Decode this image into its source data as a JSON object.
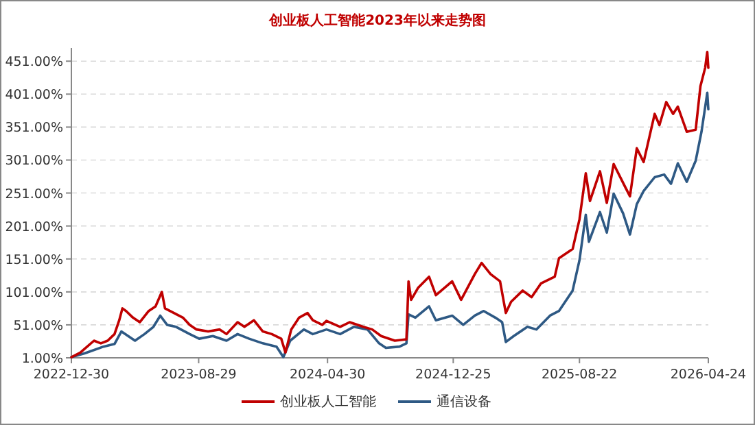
{
  "chart_data": {
    "type": "line",
    "title": "创业板人工智能2023年以来走势图",
    "xlim": [
      "2022-12-30",
      "2026-04-24"
    ],
    "xticks": [
      "2022-12-30",
      "2023-08-29",
      "2024-04-30",
      "2024-12-25",
      "2025-08-22",
      "2026-04-24"
    ],
    "ylim": [
      1,
      471
    ],
    "yticks": [
      {
        "value": 1,
        "label": "1.00%"
      },
      {
        "value": 51,
        "label": "51.00%"
      },
      {
        "value": 101,
        "label": "101.00%"
      },
      {
        "value": 151,
        "label": "151.00%"
      },
      {
        "value": 201,
        "label": "201.00%"
      },
      {
        "value": 251,
        "label": "251.00%"
      },
      {
        "value": 301,
        "label": "301.00%"
      },
      {
        "value": 351,
        "label": "351.00%"
      },
      {
        "value": 401,
        "label": "401.00%"
      },
      {
        "value": 451,
        "label": "451.00%"
      }
    ],
    "grid": "y",
    "legend": "bottom",
    "marker": "none",
    "line_style": "solid",
    "series": [
      {
        "name": "创业板人工智能",
        "color": "#c00000",
        "x": [
          "2022-12-30",
          "2023-01-16",
          "2023-02-11",
          "2023-02-24",
          "2023-03-09",
          "2023-03-22",
          "2023-03-31",
          "2023-04-06",
          "2023-04-13",
          "2023-04-26",
          "2023-05-09",
          "2023-05-26",
          "2023-06-08",
          "2023-06-20",
          "2023-06-26",
          "2023-07-13",
          "2023-07-30",
          "2023-08-12",
          "2023-08-25",
          "2023-09-16",
          "2023-10-08",
          "2023-10-21",
          "2023-11-11",
          "2023-11-24",
          "2023-12-12",
          "2023-12-29",
          "2024-01-15",
          "2024-02-02",
          "2024-02-10",
          "2024-02-21",
          "2024-03-07",
          "2024-03-23",
          "2024-04-02",
          "2024-04-20",
          "2024-04-28",
          "2024-05-24",
          "2024-06-11",
          "2024-07-07",
          "2024-07-24",
          "2024-08-10",
          "2024-09-05",
          "2024-09-27",
          "2024-10-01",
          "2024-10-06",
          "2024-10-19",
          "2024-11-09",
          "2024-11-22",
          "2024-12-23",
          "2025-01-09",
          "2025-02-04",
          "2025-02-17",
          "2025-03-06",
          "2025-03-24",
          "2025-04-04",
          "2025-04-14",
          "2025-05-06",
          "2025-05-23",
          "2025-06-10",
          "2025-07-06",
          "2025-07-14",
          "2025-08-09",
          "2025-08-22",
          "2025-09-03",
          "2025-09-11",
          "2025-09-30",
          "2025-10-13",
          "2025-10-26",
          "2025-11-17",
          "2025-11-26",
          "2025-12-09",
          "2025-12-22",
          "2026-01-12",
          "2026-01-21",
          "2026-02-03",
          "2026-02-16",
          "2026-02-25",
          "2026-03-14",
          "2026-03-31",
          "2026-04-09",
          "2026-04-18",
          "2026-04-22",
          "2026-04-24"
        ],
        "values": [
          2,
          9,
          27,
          23,
          27,
          37,
          58,
          76,
          72,
          62,
          55,
          72,
          79,
          101,
          76,
          69,
          62,
          51,
          44,
          41,
          44,
          37,
          55,
          48,
          58,
          41,
          37,
          30,
          9,
          44,
          62,
          69,
          58,
          51,
          57,
          48,
          55,
          48,
          44,
          34,
          27,
          29,
          117,
          89,
          107,
          124,
          96,
          117,
          89,
          128,
          145,
          128,
          117,
          69,
          86,
          103,
          93,
          114,
          124,
          152,
          166,
          211,
          281,
          239,
          284,
          236,
          295,
          260,
          246,
          319,
          298,
          371,
          354,
          389,
          371,
          382,
          344,
          347,
          413,
          441,
          465,
          441
        ]
      },
      {
        "name": "通信设备",
        "color": "#2e5984",
        "x": [
          "2022-12-30",
          "2023-01-25",
          "2023-03-01",
          "2023-03-22",
          "2023-04-04",
          "2023-04-17",
          "2023-04-30",
          "2023-05-18",
          "2023-06-04",
          "2023-06-17",
          "2023-06-30",
          "2023-07-17",
          "2023-08-12",
          "2023-08-30",
          "2023-09-25",
          "2023-10-21",
          "2023-11-11",
          "2023-12-03",
          "2023-12-29",
          "2024-01-24",
          "2024-02-06",
          "2024-02-19",
          "2024-03-16",
          "2024-04-02",
          "2024-04-28",
          "2024-05-24",
          "2024-06-19",
          "2024-07-15",
          "2024-08-06",
          "2024-08-19",
          "2024-09-14",
          "2024-09-27",
          "2024-10-01",
          "2024-10-14",
          "2024-11-09",
          "2024-11-22",
          "2024-12-23",
          "2025-01-13",
          "2025-02-04",
          "2025-02-21",
          "2025-03-15",
          "2025-03-28",
          "2025-04-04",
          "2025-04-19",
          "2025-05-15",
          "2025-06-01",
          "2025-06-27",
          "2025-07-14",
          "2025-08-09",
          "2025-08-22",
          "2025-09-03",
          "2025-09-09",
          "2025-09-30",
          "2025-10-13",
          "2025-10-26",
          "2025-11-13",
          "2025-11-26",
          "2025-12-09",
          "2025-12-22",
          "2026-01-12",
          "2026-01-30",
          "2026-02-12",
          "2026-02-25",
          "2026-03-14",
          "2026-03-31",
          "2026-04-11",
          "2026-04-22",
          "2026-04-24"
        ],
        "values": [
          2,
          8,
          18,
          22,
          41,
          34,
          27,
          37,
          48,
          65,
          51,
          48,
          37,
          30,
          34,
          27,
          37,
          30,
          23,
          18,
          2,
          27,
          44,
          37,
          44,
          37,
          48,
          44,
          23,
          16,
          18,
          23,
          67,
          62,
          79,
          58,
          65,
          51,
          65,
          72,
          62,
          55,
          25,
          34,
          48,
          44,
          65,
          72,
          103,
          149,
          218,
          177,
          222,
          191,
          250,
          220,
          188,
          234,
          254,
          275,
          279,
          265,
          296,
          268,
          300,
          344,
          403,
          378
        ]
      }
    ]
  }
}
